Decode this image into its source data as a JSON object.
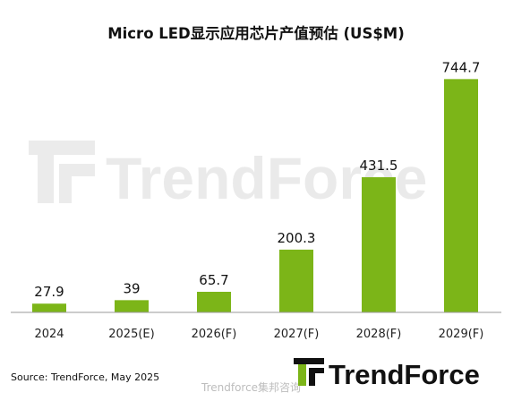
{
  "chart_data": {
    "type": "bar",
    "title": "Micro LED显示应用芯片产值预估  (US$M)",
    "categories": [
      "2024",
      "2025(E)",
      "2026(F)",
      "2027(F)",
      "2028(F)",
      "2029(F)"
    ],
    "values": [
      27.9,
      39,
      65.7,
      200.3,
      431.5,
      744.7
    ],
    "value_labels": [
      "27.9",
      "39",
      "65.7",
      "200.3",
      "431.5",
      "744.7"
    ],
    "xlabel": "",
    "ylabel": "",
    "ylim": [
      0,
      800
    ],
    "grid": false,
    "legend": "none",
    "bar_color": "#7cb518"
  },
  "source": "Source: TrendForce, May 2025",
  "brand": {
    "logo_text": "TrendForce",
    "watermark_text": "TrendForce",
    "logo_color": "#7cb518"
  },
  "weibo_watermark": "Trendforce集邦咨询"
}
